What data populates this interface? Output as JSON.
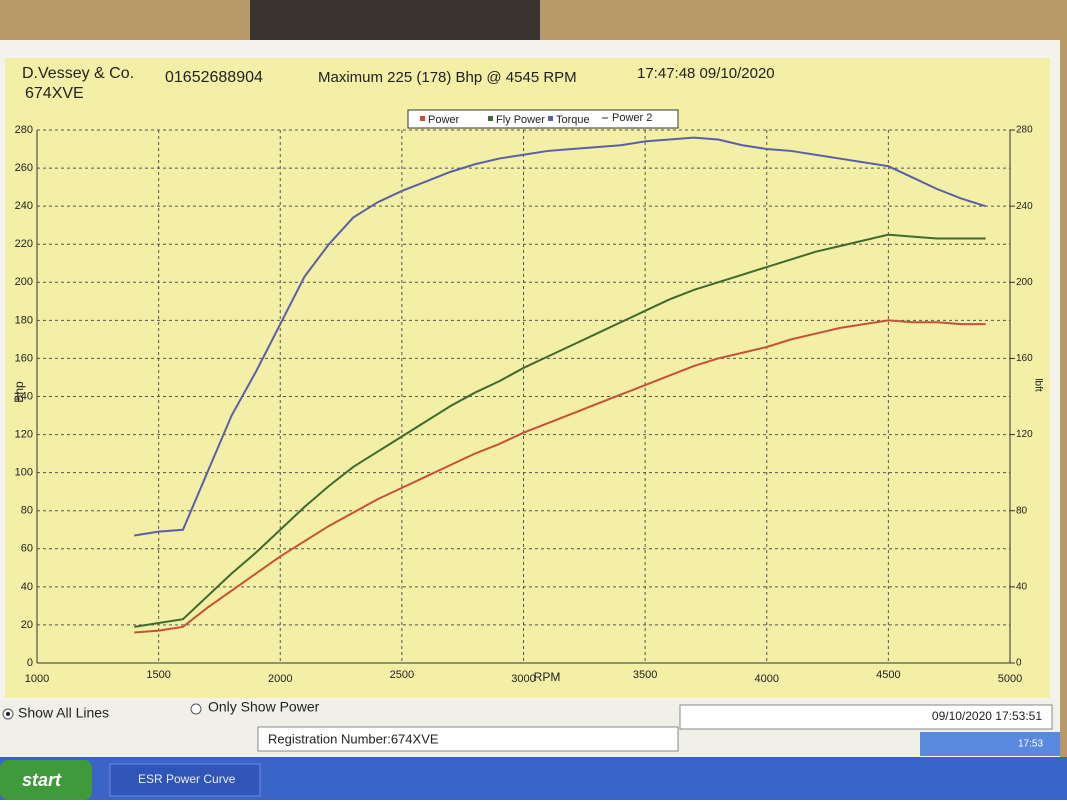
{
  "chart_data": {
    "type": "line",
    "header": {
      "company": "D.Vessey & Co.",
      "phone": "01652688904",
      "registration": "674XVE",
      "maximum": "Maximum 225 (178) Bhp @ 4545 RPM",
      "timestamp": "17:47:48 09/10/2020"
    },
    "x_label": "RPM",
    "y_label": "Bhp",
    "y2_label": "lbft",
    "x": [
      1400,
      1500,
      1600,
      1700,
      1800,
      1900,
      2000,
      2100,
      2200,
      2300,
      2400,
      2500,
      2600,
      2700,
      2800,
      2900,
      3000,
      3100,
      3200,
      3300,
      3400,
      3500,
      3600,
      3700,
      3800,
      3900,
      4000,
      4100,
      4200,
      4300,
      4400,
      4500,
      4600,
      4700,
      4800,
      4900
    ],
    "series": [
      {
        "name": "Power",
        "color": "#c8503a",
        "values": [
          16,
          17,
          19,
          29,
          38,
          47,
          56,
          64,
          72,
          79,
          86,
          92,
          98,
          104,
          110,
          115,
          121,
          126,
          131,
          136,
          141,
          146,
          151,
          156,
          160,
          163,
          166,
          170,
          173,
          176,
          178,
          180,
          179,
          179,
          178,
          178
        ]
      },
      {
        "name": "Fly Power",
        "color": "#3f6b2e",
        "values": [
          19,
          21,
          23,
          35,
          47,
          58,
          70,
          82,
          93,
          103,
          111,
          119,
          127,
          135,
          142,
          148,
          155,
          161,
          167,
          173,
          179,
          185,
          191,
          196,
          200,
          204,
          208,
          212,
          216,
          219,
          222,
          225,
          224,
          223,
          223,
          223
        ]
      },
      {
        "name": "Torque",
        "color": "#5a5fa8",
        "axis": "y2",
        "values": [
          67,
          69,
          70,
          100,
          130,
          153,
          178,
          203,
          220,
          234,
          242,
          248,
          253,
          258,
          262,
          265,
          267,
          269,
          270,
          271,
          272,
          274,
          275,
          276,
          275,
          272,
          270,
          269,
          267,
          265,
          263,
          261,
          255,
          249,
          244,
          240
        ]
      }
    ],
    "legend_extra": "Power 2",
    "xlim": [
      1000,
      5000
    ],
    "xticks": [
      1000,
      1500,
      2000,
      2500,
      3000,
      3500,
      4000,
      4500,
      5000
    ],
    "ylim": [
      0,
      280
    ],
    "yticks": [
      0,
      20,
      40,
      60,
      80,
      100,
      120,
      140,
      160,
      180,
      200,
      220,
      240,
      260,
      280
    ],
    "y2lim": [
      0,
      280
    ],
    "y2ticks": [
      0,
      40,
      80,
      120,
      160,
      200,
      240,
      280
    ],
    "grid": true,
    "ui": {
      "show_all": "Show All Lines",
      "only_power": "Only Show Power",
      "status_time": "09/10/2020 17:53:51",
      "status_reg": "Registration Number:674XVE",
      "start": "start",
      "task": "ESR Power Curve",
      "clock": "17:53"
    }
  }
}
